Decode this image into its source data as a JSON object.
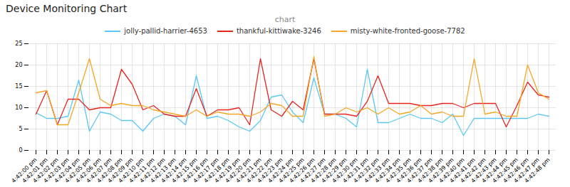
{
  "chart_data": {
    "type": "line",
    "title": "Device Monitoring Chart",
    "subtitle": "chart",
    "categories": [
      "4:42:00 pm",
      "4:42:01 pm",
      "4:42:02 pm",
      "4:42:03 pm",
      "4:42:04 pm",
      "4:42:05 pm",
      "4:42:06 pm",
      "4:42:07 pm",
      "4:42:08 pm",
      "4:42:09 pm",
      "4:42:10 pm",
      "4:42:11 pm",
      "4:42:12 pm",
      "4:42:13 pm",
      "4:42:14 pm",
      "4:42:15 pm",
      "4:42:16 pm",
      "4:42:17 pm",
      "4:42:18 pm",
      "4:42:19 pm",
      "4:42:20 pm",
      "4:42:21 pm",
      "4:42:22 pm",
      "4:42:23 pm",
      "4:42:24 pm",
      "4:42:25 pm",
      "4:42:26 pm",
      "4:42:27 pm",
      "4:42:28 pm",
      "4:42:29 pm",
      "4:42:30 pm",
      "4:42:31 pm",
      "4:42:32 pm",
      "4:42:33 pm",
      "4:42:34 pm",
      "4:42:35 pm",
      "4:42:36 pm",
      "4:42:37 pm",
      "4:42:38 pm",
      "4:42:39 pm",
      "4:42:40 pm",
      "4:42:41 pm",
      "4:42:42 pm",
      "4:42:43 pm",
      "4:42:44 pm",
      "4:42:45 pm",
      "4:42:46 pm",
      "4:42:47 pm",
      "4:42:48 pm"
    ],
    "series": [
      {
        "name": "jolly-pallid-harrier-4653",
        "color": "#5bc8f5",
        "values": [
          8.8,
          7.5,
          7.5,
          8.0,
          16.5,
          4.5,
          9.0,
          8.5,
          7.0,
          7.0,
          4.5,
          7.5,
          8.5,
          8.0,
          6.0,
          17.5,
          7.5,
          8.0,
          7.0,
          5.5,
          4.5,
          7.0,
          12.5,
          13.0,
          9.0,
          6.5,
          17.0,
          8.5,
          8.5,
          7.5,
          5.5,
          19.0,
          6.5,
          6.5,
          7.5,
          8.5,
          7.5,
          7.5,
          6.5,
          8.5,
          3.5,
          7.5,
          7.5,
          7.5,
          7.5,
          7.5,
          7.5,
          8.5,
          8.0
        ]
      },
      {
        "name": "thankful-kittiwake-3246",
        "color": "#e8251f",
        "values": [
          8.5,
          14.0,
          6.0,
          12.0,
          12.0,
          9.5,
          10.0,
          10.0,
          19.0,
          15.5,
          9.5,
          10.5,
          8.5,
          8.0,
          8.0,
          14.5,
          8.0,
          9.5,
          9.5,
          10.0,
          6.0,
          21.5,
          9.5,
          8.0,
          11.5,
          9.5,
          21.5,
          8.5,
          8.5,
          8.5,
          8.0,
          11.5,
          17.5,
          11.0,
          11.0,
          11.0,
          10.5,
          10.5,
          11.0,
          11.0,
          10.0,
          11.0,
          11.0,
          11.0,
          5.5,
          10.5,
          16.0,
          13.0,
          12.5
        ]
      },
      {
        "name": "misty-white-fronted-goose-7782",
        "color": "#f5a623",
        "values": [
          13.5,
          14.0,
          6.0,
          6.0,
          13.5,
          21.5,
          12.0,
          10.5,
          11.0,
          10.5,
          10.5,
          9.5,
          9.0,
          8.5,
          8.0,
          9.5,
          8.0,
          9.0,
          8.5,
          8.5,
          8.0,
          9.0,
          11.0,
          10.5,
          8.0,
          8.0,
          22.0,
          8.0,
          8.5,
          10.0,
          9.0,
          10.0,
          8.5,
          10.0,
          8.5,
          9.0,
          10.5,
          8.5,
          9.0,
          8.0,
          8.0,
          21.5,
          8.5,
          9.0,
          8.0,
          8.0,
          20.0,
          13.5,
          12.0
        ]
      }
    ],
    "ylim": [
      0,
      25
    ],
    "yticks": [
      0,
      5,
      10,
      15,
      20,
      25
    ],
    "grid": true,
    "legend": "top"
  }
}
